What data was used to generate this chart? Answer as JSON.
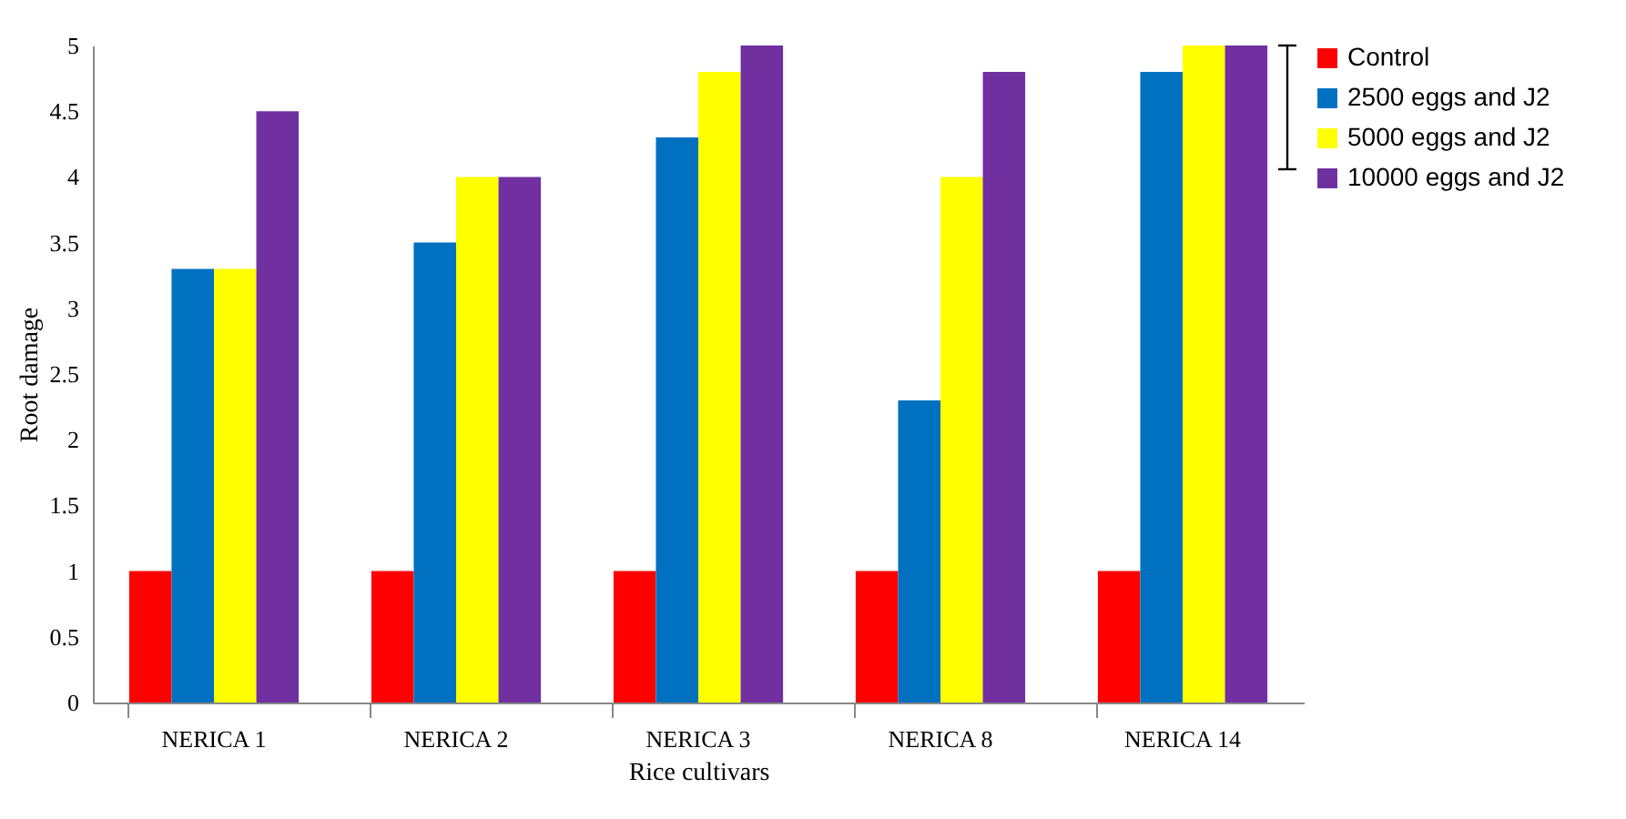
{
  "chart_data": {
    "type": "bar",
    "xlabel": "Rice cultivars",
    "ylabel": "Root damage",
    "categories": [
      "NERICA 1",
      "NERICA 2",
      "NERICA 3",
      "NERICA 8",
      "NERICA 14"
    ],
    "series": [
      {
        "name": "Control",
        "color": "#ff0000",
        "values": [
          1,
          1,
          1,
          1,
          1
        ]
      },
      {
        "name": "2500 eggs and J2",
        "color": "#0070c0",
        "values": [
          3.3,
          3.5,
          4.3,
          2.3,
          4.8
        ]
      },
      {
        "name": "5000 eggs and J2",
        "color": "#ffff00",
        "values": [
          3.3,
          4,
          4.8,
          4,
          5
        ]
      },
      {
        "name": "10000 eggs and J2",
        "color": "#7030a0",
        "values": [
          4.5,
          4,
          5,
          4.8,
          5
        ]
      }
    ],
    "ylim": [
      0,
      5
    ],
    "yticks": [
      0,
      0.5,
      1,
      1.5,
      2,
      2.5,
      3,
      3.5,
      4,
      4.5,
      5
    ],
    "grid": false,
    "legend": "right"
  }
}
